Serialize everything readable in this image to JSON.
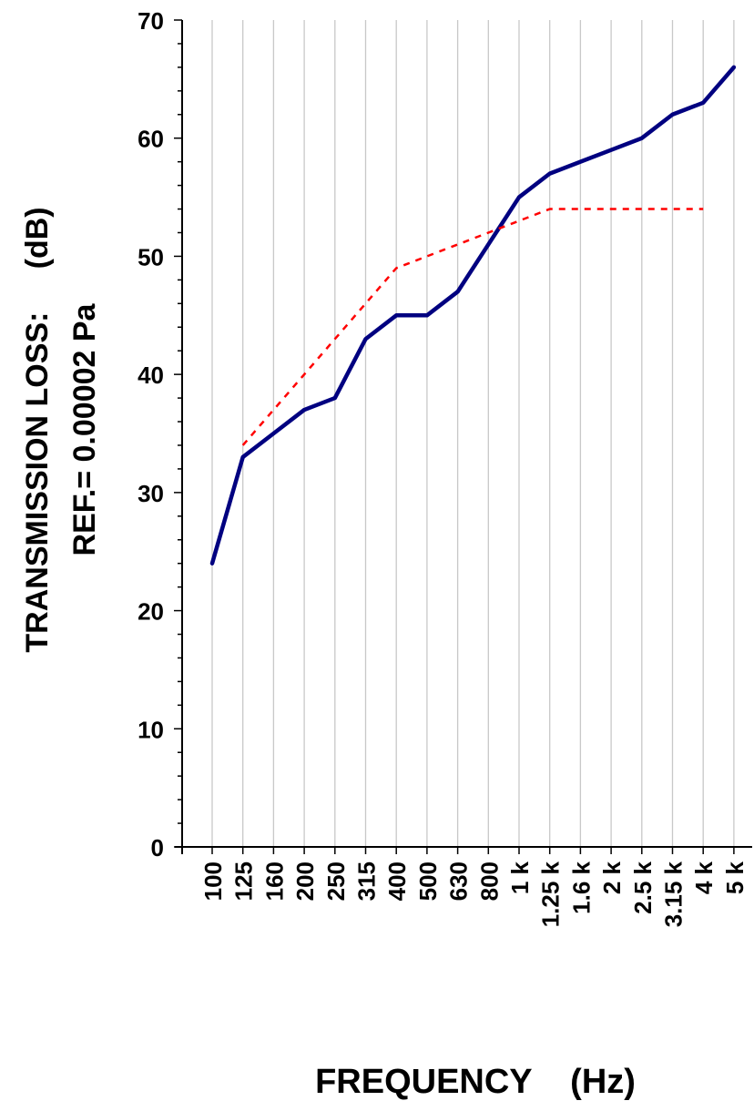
{
  "chart_data": {
    "type": "line",
    "title": "",
    "xlabel": "FREQUENCY    (Hz)",
    "ylabel_line1": "TRANSMISSION LOSS:     (dB)",
    "ylabel_line2": "REF.= 0.00002 Pa",
    "categories": [
      "100",
      "125",
      "160",
      "200",
      "250",
      "315",
      "400",
      "500",
      "630",
      "800",
      "1 k",
      "1.25 k",
      "1.6 k",
      "2 k",
      "2.5 k",
      "3.15 k",
      "4 k",
      "5 k"
    ],
    "ylim": [
      0,
      70
    ],
    "yticks": [
      0,
      10,
      20,
      30,
      40,
      50,
      60,
      70
    ],
    "grid": true,
    "legend": "none",
    "series": [
      {
        "style": "solid",
        "color": "#000080",
        "values": [
          24,
          33,
          35,
          37,
          38,
          43,
          45,
          45,
          47,
          51,
          55,
          57,
          58,
          59,
          60,
          62,
          63,
          66
        ]
      },
      {
        "style": "dashed",
        "color": "#ff0000",
        "values": [
          null,
          34,
          37,
          40,
          43,
          46,
          49,
          50,
          51,
          52,
          53,
          54,
          54,
          54,
          54,
          54,
          54,
          null
        ]
      }
    ]
  }
}
